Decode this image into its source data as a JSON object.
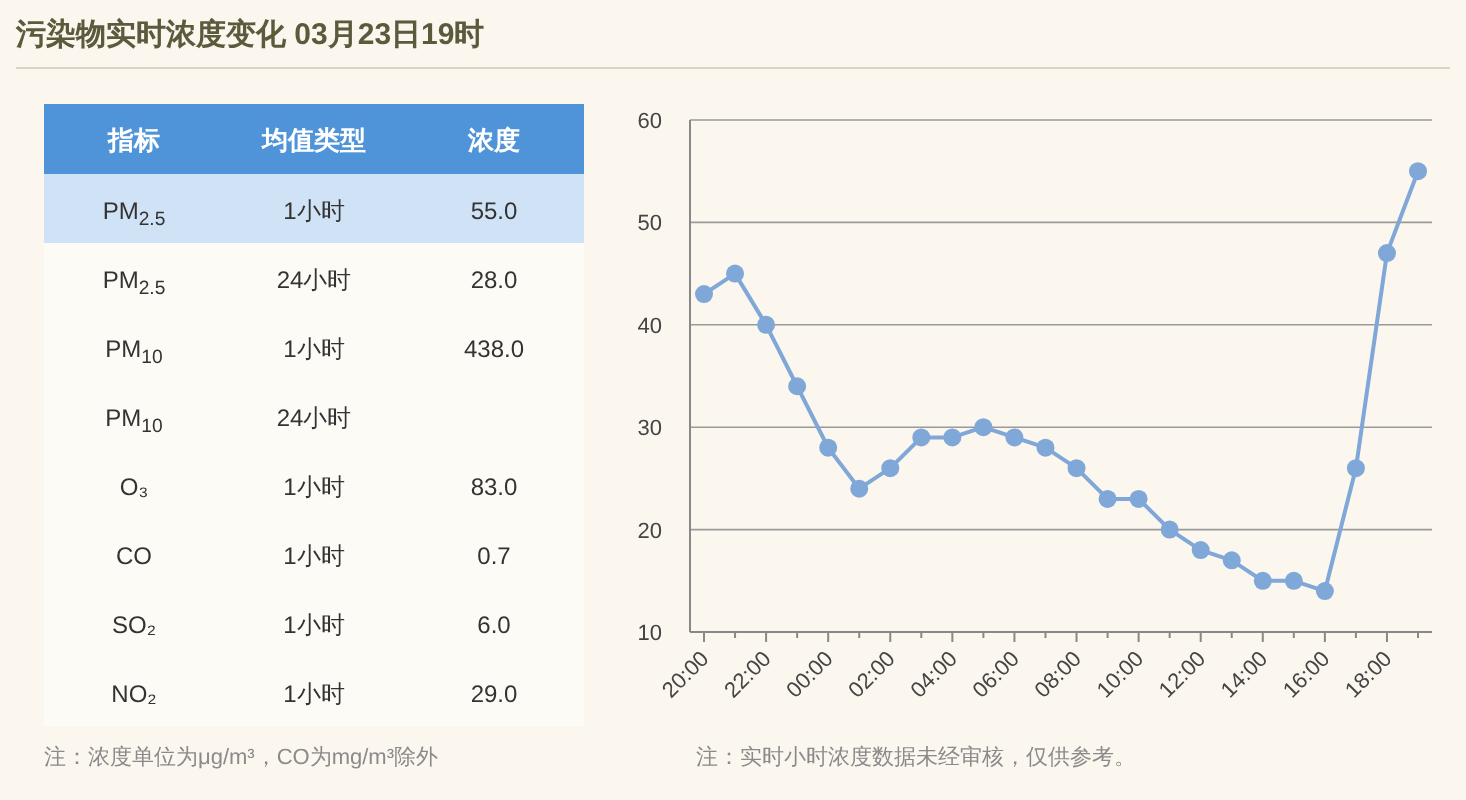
{
  "chart_data": [
    {
      "type": "other",
      "title": "污染物实时浓度变化 03月23日19时",
      "categories": [
        "指标",
        "均值类型",
        "浓度"
      ],
      "cell_labels": [
        [
          "PM$_{2.5}$",
          "1小时",
          "55.0"
        ],
        [
          "PM$_{2.5}$",
          "24小时",
          "28.0"
        ],
        [
          "PM$_{10}$",
          "1小时",
          "438.0"
        ],
        [
          "PM$_{10}$",
          "24小时",
          null
        ],
        [
          "O₃",
          "1小时",
          "83.0"
        ],
        [
          "CO",
          "1小时",
          "0.7"
        ],
        [
          "SO₂",
          "1小时",
          "6.0"
        ],
        [
          "NO₂",
          "1小时",
          "29.0"
        ]
      ],
      "annotations": [
        "注：浓度单位为μg/m³，CO为mg/m³除外"
      ]
    },
    {
      "type": "line",
      "categories": [
        "20:00",
        null,
        "22:00",
        null,
        "00:00",
        null,
        "02:00",
        null,
        "04:00",
        null,
        "06:00",
        null,
        "08:00",
        null,
        "10:00",
        null,
        "12:00",
        null,
        "14:00",
        null,
        "16:00",
        null,
        "18:00",
        null
      ],
      "values": [
        43,
        45,
        40,
        34,
        28,
        24,
        26,
        29,
        29,
        30,
        29,
        28,
        26,
        23,
        23,
        20,
        18,
        17,
        15,
        15,
        14,
        26,
        47,
        55
      ],
      "color": "#7fa7d8",
      "ylim": [
        10,
        60
      ],
      "yticks": [
        10,
        20,
        30,
        40,
        50,
        60
      ],
      "grid": "y",
      "marker": "circle",
      "annotations": [
        "注：实时小时浓度数据未经审核，仅供参考。"
      ]
    }
  ]
}
